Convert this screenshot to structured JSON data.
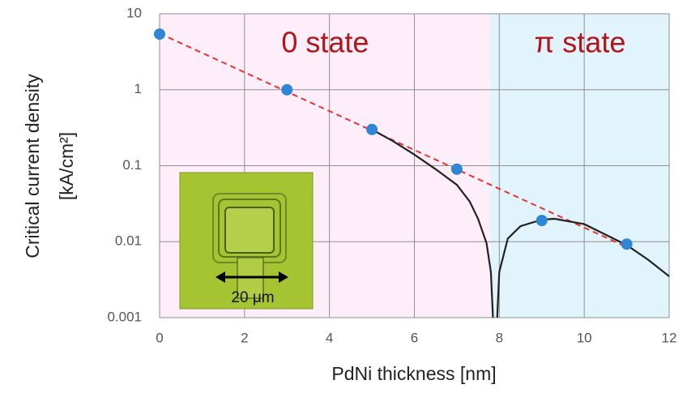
{
  "chart_data": {
    "type": "line",
    "xlabel": "PdNi thickness [nm]",
    "ylabel": [
      "Critical current density",
      "[kA/cm²]"
    ],
    "xlim": [
      0,
      12
    ],
    "xticks": [
      0,
      2,
      4,
      6,
      8,
      10,
      12
    ],
    "ylim": [
      0.001,
      10
    ],
    "yticks": [
      10,
      1,
      0.1,
      0.01,
      0.001
    ],
    "yscale": "log",
    "grid": true,
    "regions": [
      {
        "label": "0 state",
        "x": [
          0,
          7.8
        ],
        "color": "#fdeefa",
        "text_color": "#b3141b"
      },
      {
        "label": "π state",
        "x": [
          7.8,
          12
        ],
        "color": "#e1f3fb",
        "text_color": "#b3141b"
      }
    ],
    "inset_label": "20 μm",
    "series": [
      {
        "mode": "dashed",
        "color": "#e8332e",
        "x": [
          0,
          11
        ],
        "values": [
          5.5,
          0.0085
        ]
      },
      {
        "mode": "line",
        "color": "#222222",
        "x": [
          5,
          5.5,
          6,
          6.5,
          7,
          7.3,
          7.5,
          7.7,
          7.8,
          7.85,
          7.9,
          7.95,
          8.0,
          8.2,
          8.5,
          9.0,
          9.3,
          10,
          11,
          11.5,
          12
        ],
        "values": [
          0.3,
          0.21,
          0.14,
          0.09,
          0.056,
          0.034,
          0.02,
          0.0095,
          0.004,
          0.001,
          null,
          0.001,
          0.004,
          0.011,
          0.016,
          0.0195,
          0.02,
          0.017,
          0.009,
          0.0058,
          0.0035
        ]
      },
      {
        "mode": "markers",
        "color": "#2e86d4",
        "x": [
          0,
          3,
          5,
          7,
          9,
          11
        ],
        "values": [
          5.4,
          1.0,
          0.3,
          0.09,
          0.019,
          0.0093
        ]
      }
    ]
  }
}
